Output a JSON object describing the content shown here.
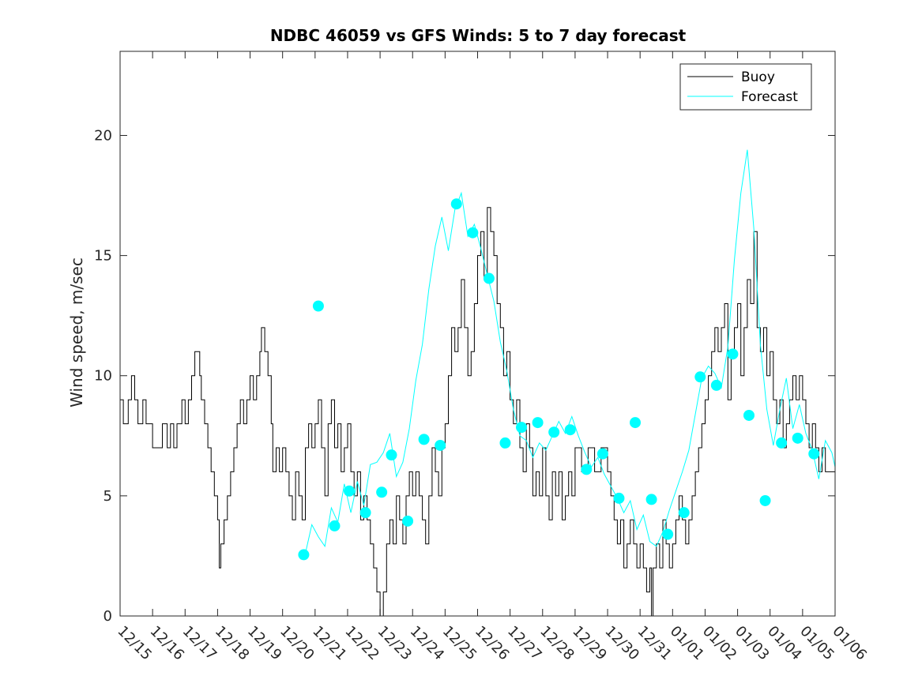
{
  "chart_data": {
    "type": "line",
    "title": "NDBC 46059 vs GFS Winds: 5 to 7 day forecast",
    "xlabel": "",
    "ylabel": "Wind speed, m/sec",
    "xlim": [
      "12/15",
      "01/06"
    ],
    "ylim": [
      0,
      23.5
    ],
    "xticks": [
      "12/15",
      "12/16",
      "12/17",
      "12/18",
      "12/19",
      "12/20",
      "12/21",
      "12/22",
      "12/23",
      "12/24",
      "12/25",
      "12/26",
      "12/27",
      "12/28",
      "12/29",
      "12/30",
      "12/31",
      "01/01",
      "01/02",
      "01/03",
      "01/04",
      "01/05",
      "01/06"
    ],
    "yticks": [
      0,
      5,
      10,
      15,
      20
    ],
    "grid": false,
    "legend_position": "top-right",
    "colors": {
      "buoy": "#000000",
      "forecast": "#00ffff",
      "axes": "#262626"
    },
    "x_units": "days after 12/15",
    "series": [
      {
        "name": "Buoy",
        "color": "#000000",
        "points": [
          [
            0,
            9
          ],
          [
            0.1,
            8
          ],
          [
            0.25,
            9
          ],
          [
            0.35,
            10
          ],
          [
            0.45,
            9
          ],
          [
            0.55,
            8
          ],
          [
            0.7,
            9
          ],
          [
            0.8,
            8
          ],
          [
            0.9,
            8
          ],
          [
            1,
            7
          ],
          [
            1.15,
            7
          ],
          [
            1.3,
            8
          ],
          [
            1.45,
            7
          ],
          [
            1.55,
            8
          ],
          [
            1.65,
            7
          ],
          [
            1.75,
            8
          ],
          [
            1.9,
            9
          ],
          [
            2,
            8
          ],
          [
            2.1,
            9
          ],
          [
            2.2,
            10
          ],
          [
            2.3,
            11
          ],
          [
            2.45,
            10
          ],
          [
            2.5,
            9
          ],
          [
            2.6,
            8
          ],
          [
            2.7,
            7
          ],
          [
            2.8,
            6
          ],
          [
            2.9,
            5
          ],
          [
            3,
            4
          ],
          [
            3.05,
            2
          ],
          [
            3.1,
            3
          ],
          [
            3.2,
            4
          ],
          [
            3.3,
            5
          ],
          [
            3.4,
            6
          ],
          [
            3.5,
            7
          ],
          [
            3.6,
            8
          ],
          [
            3.7,
            9
          ],
          [
            3.8,
            8
          ],
          [
            3.9,
            9
          ],
          [
            4,
            10
          ],
          [
            4.1,
            9
          ],
          [
            4.2,
            10
          ],
          [
            4.3,
            11
          ],
          [
            4.35,
            12
          ],
          [
            4.45,
            11
          ],
          [
            4.55,
            10
          ],
          [
            4.65,
            8
          ],
          [
            4.7,
            6
          ],
          [
            4.8,
            7
          ],
          [
            4.9,
            6
          ],
          [
            5,
            7
          ],
          [
            5.1,
            6
          ],
          [
            5.2,
            5
          ],
          [
            5.3,
            4
          ],
          [
            5.4,
            6
          ],
          [
            5.5,
            5
          ],
          [
            5.6,
            4
          ],
          [
            5.7,
            7
          ],
          [
            5.8,
            8
          ],
          [
            5.9,
            7
          ],
          [
            6,
            8
          ],
          [
            6.1,
            9
          ],
          [
            6.2,
            7
          ],
          [
            6.3,
            5
          ],
          [
            6.4,
            8
          ],
          [
            6.5,
            9
          ],
          [
            6.6,
            7
          ],
          [
            6.7,
            8
          ],
          [
            6.8,
            6
          ],
          [
            6.9,
            7
          ],
          [
            7,
            8
          ],
          [
            7.1,
            6
          ],
          [
            7.2,
            5
          ],
          [
            7.3,
            6
          ],
          [
            7.4,
            4
          ],
          [
            7.5,
            5
          ],
          [
            7.6,
            4
          ],
          [
            7.7,
            3
          ],
          [
            7.8,
            2
          ],
          [
            7.9,
            1
          ],
          [
            8,
            0
          ],
          [
            8.1,
            1
          ],
          [
            8.2,
            3
          ],
          [
            8.3,
            4
          ],
          [
            8.4,
            3
          ],
          [
            8.5,
            5
          ],
          [
            8.6,
            4
          ],
          [
            8.7,
            3
          ],
          [
            8.8,
            5
          ],
          [
            8.9,
            6
          ],
          [
            9,
            5
          ],
          [
            9.1,
            6
          ],
          [
            9.2,
            5
          ],
          [
            9.3,
            4
          ],
          [
            9.4,
            3
          ],
          [
            9.5,
            5
          ],
          [
            9.6,
            7
          ],
          [
            9.7,
            6
          ],
          [
            9.8,
            5
          ],
          [
            9.9,
            7
          ],
          [
            10,
            8
          ],
          [
            10.1,
            10
          ],
          [
            10.2,
            12
          ],
          [
            10.3,
            11
          ],
          [
            10.4,
            12
          ],
          [
            10.5,
            14
          ],
          [
            10.6,
            12
          ],
          [
            10.7,
            10
          ],
          [
            10.8,
            11
          ],
          [
            10.9,
            13
          ],
          [
            11,
            15
          ],
          [
            11.1,
            16
          ],
          [
            11.2,
            14
          ],
          [
            11.3,
            17
          ],
          [
            11.4,
            16
          ],
          [
            11.5,
            15
          ],
          [
            11.6,
            13
          ],
          [
            11.7,
            12
          ],
          [
            11.8,
            10
          ],
          [
            11.9,
            11
          ],
          [
            12,
            9
          ],
          [
            12.1,
            8
          ],
          [
            12.2,
            9
          ],
          [
            12.3,
            7
          ],
          [
            12.4,
            6
          ],
          [
            12.5,
            8
          ],
          [
            12.6,
            7
          ],
          [
            12.7,
            5
          ],
          [
            12.8,
            6
          ],
          [
            12.9,
            5
          ],
          [
            13,
            7
          ],
          [
            13.1,
            5
          ],
          [
            13.2,
            4
          ],
          [
            13.3,
            6
          ],
          [
            13.4,
            5
          ],
          [
            13.5,
            6
          ],
          [
            13.6,
            4
          ],
          [
            13.7,
            5
          ],
          [
            13.8,
            6
          ],
          [
            13.9,
            5
          ],
          [
            14,
            7
          ],
          [
            14.2,
            6
          ],
          [
            14.4,
            7
          ],
          [
            14.6,
            6
          ],
          [
            14.8,
            7
          ],
          [
            15,
            6
          ],
          [
            15.1,
            5
          ],
          [
            15.2,
            4
          ],
          [
            15.3,
            3
          ],
          [
            15.4,
            4
          ],
          [
            15.5,
            2
          ],
          [
            15.6,
            3
          ],
          [
            15.7,
            4
          ],
          [
            15.8,
            3
          ],
          [
            15.9,
            2
          ],
          [
            16,
            3
          ],
          [
            16.1,
            2
          ],
          [
            16.2,
            1
          ],
          [
            16.3,
            2
          ],
          [
            16.35,
            0
          ],
          [
            16.4,
            2
          ],
          [
            16.5,
            3
          ],
          [
            16.6,
            2
          ],
          [
            16.7,
            4
          ],
          [
            16.8,
            3
          ],
          [
            16.9,
            2
          ],
          [
            17,
            3
          ],
          [
            17.1,
            4
          ],
          [
            17.2,
            5
          ],
          [
            17.3,
            4
          ],
          [
            17.4,
            3
          ],
          [
            17.5,
            4
          ],
          [
            17.6,
            5
          ],
          [
            17.7,
            6
          ],
          [
            17.8,
            7
          ],
          [
            17.9,
            8
          ],
          [
            18,
            9
          ],
          [
            18.1,
            10
          ],
          [
            18.2,
            11
          ],
          [
            18.3,
            12
          ],
          [
            18.4,
            11
          ],
          [
            18.5,
            12
          ],
          [
            18.6,
            13
          ],
          [
            18.7,
            9
          ],
          [
            18.8,
            11
          ],
          [
            18.9,
            12
          ],
          [
            19,
            13
          ],
          [
            19.1,
            10
          ],
          [
            19.2,
            12
          ],
          [
            19.3,
            14
          ],
          [
            19.4,
            13
          ],
          [
            19.5,
            16
          ],
          [
            19.6,
            12
          ],
          [
            19.7,
            11
          ],
          [
            19.8,
            12
          ],
          [
            19.9,
            10
          ],
          [
            20,
            11
          ],
          [
            20.1,
            9
          ],
          [
            20.2,
            8
          ],
          [
            20.3,
            9
          ],
          [
            20.4,
            7
          ],
          [
            20.5,
            8
          ],
          [
            20.6,
            9
          ],
          [
            20.7,
            10
          ],
          [
            20.8,
            9
          ],
          [
            20.9,
            10
          ],
          [
            21,
            9
          ],
          [
            21.1,
            8
          ],
          [
            21.2,
            7
          ],
          [
            21.3,
            8
          ],
          [
            21.4,
            7
          ],
          [
            21.5,
            6
          ],
          [
            21.6,
            7
          ],
          [
            21.7,
            6
          ],
          [
            22,
            7
          ]
        ]
      },
      {
        "name": "Forecast",
        "color": "#00ffff",
        "points": [
          [
            5.7,
            2.6
          ],
          [
            5.9,
            3.8
          ],
          [
            6.1,
            3.3
          ],
          [
            6.3,
            2.9
          ],
          [
            6.5,
            4.5
          ],
          [
            6.7,
            3.9
          ],
          [
            6.9,
            5.5
          ],
          [
            7.1,
            4.3
          ],
          [
            7.3,
            5.6
          ],
          [
            7.5,
            4.6
          ],
          [
            7.7,
            6.3
          ],
          [
            7.9,
            6.4
          ],
          [
            8.1,
            6.8
          ],
          [
            8.3,
            7.6
          ],
          [
            8.5,
            5.8
          ],
          [
            8.7,
            6.4
          ],
          [
            8.9,
            7.8
          ],
          [
            9.1,
            9.8
          ],
          [
            9.3,
            11.3
          ],
          [
            9.5,
            13.6
          ],
          [
            9.7,
            15.4
          ],
          [
            9.9,
            16.6
          ],
          [
            10.1,
            15.2
          ],
          [
            10.3,
            16.9
          ],
          [
            10.5,
            17.6
          ],
          [
            10.7,
            15.8
          ],
          [
            10.9,
            16.3
          ],
          [
            11.1,
            15.3
          ],
          [
            11.3,
            14.2
          ],
          [
            11.5,
            13.1
          ],
          [
            11.7,
            11.4
          ],
          [
            11.9,
            10.2
          ],
          [
            12.1,
            8.6
          ],
          [
            12.3,
            7.5
          ],
          [
            12.5,
            7.3
          ],
          [
            12.7,
            6.6
          ],
          [
            12.9,
            7.2
          ],
          [
            13.1,
            6.9
          ],
          [
            13.3,
            7.5
          ],
          [
            13.5,
            8.1
          ],
          [
            13.7,
            7.6
          ],
          [
            13.9,
            8.3
          ],
          [
            14.1,
            7.5
          ],
          [
            14.3,
            6.8
          ],
          [
            14.5,
            6.2
          ],
          [
            14.7,
            6.6
          ],
          [
            14.9,
            5.9
          ],
          [
            15.1,
            5.4
          ],
          [
            15.3,
            4.9
          ],
          [
            15.5,
            4.3
          ],
          [
            15.7,
            4.8
          ],
          [
            15.9,
            3.6
          ],
          [
            16.1,
            4.2
          ],
          [
            16.3,
            3.1
          ],
          [
            16.5,
            2.9
          ],
          [
            16.7,
            3.5
          ],
          [
            16.9,
            4.4
          ],
          [
            17.1,
            5.2
          ],
          [
            17.3,
            6.0
          ],
          [
            17.5,
            6.9
          ],
          [
            17.7,
            8.4
          ],
          [
            17.9,
            9.9
          ],
          [
            18.1,
            10.4
          ],
          [
            18.3,
            10.1
          ],
          [
            18.5,
            9.5
          ],
          [
            18.7,
            11.2
          ],
          [
            18.9,
            14.8
          ],
          [
            19.1,
            17.6
          ],
          [
            19.3,
            19.4
          ],
          [
            19.5,
            16.1
          ],
          [
            19.7,
            11.3
          ],
          [
            19.9,
            8.6
          ],
          [
            20.1,
            7.1
          ],
          [
            20.3,
            8.6
          ],
          [
            20.5,
            9.9
          ],
          [
            20.7,
            7.8
          ],
          [
            20.9,
            8.8
          ],
          [
            21.1,
            7.6
          ],
          [
            21.3,
            6.9
          ],
          [
            21.5,
            5.7
          ],
          [
            21.7,
            7.3
          ],
          [
            21.9,
            6.8
          ],
          [
            22,
            6.2
          ]
        ]
      }
    ],
    "forecast_markers": [
      [
        5.65,
        2.55
      ],
      [
        6.1,
        12.9
      ],
      [
        6.6,
        3.75
      ],
      [
        7.05,
        5.2
      ],
      [
        7.55,
        4.3
      ],
      [
        8.05,
        5.15
      ],
      [
        8.35,
        6.7
      ],
      [
        8.85,
        3.95
      ],
      [
        9.35,
        7.35
      ],
      [
        9.85,
        7.1
      ],
      [
        10.35,
        17.15
      ],
      [
        10.85,
        15.95
      ],
      [
        11.35,
        14.05
      ],
      [
        11.85,
        7.2
      ],
      [
        12.35,
        7.85
      ],
      [
        12.85,
        8.05
      ],
      [
        13.35,
        7.65
      ],
      [
        13.85,
        7.75
      ],
      [
        14.35,
        6.1
      ],
      [
        14.85,
        6.75
      ],
      [
        15.35,
        4.9
      ],
      [
        15.85,
        8.05
      ],
      [
        16.35,
        4.85
      ],
      [
        16.85,
        3.4
      ],
      [
        17.35,
        4.3
      ],
      [
        17.85,
        9.95
      ],
      [
        18.35,
        9.6
      ],
      [
        18.85,
        10.9
      ],
      [
        19.35,
        8.35
      ],
      [
        19.85,
        4.8
      ],
      [
        20.35,
        7.2
      ],
      [
        20.85,
        7.4
      ],
      [
        21.35,
        6.75
      ]
    ]
  },
  "legend": {
    "buoy_label": "Buoy",
    "forecast_label": "Forecast"
  }
}
